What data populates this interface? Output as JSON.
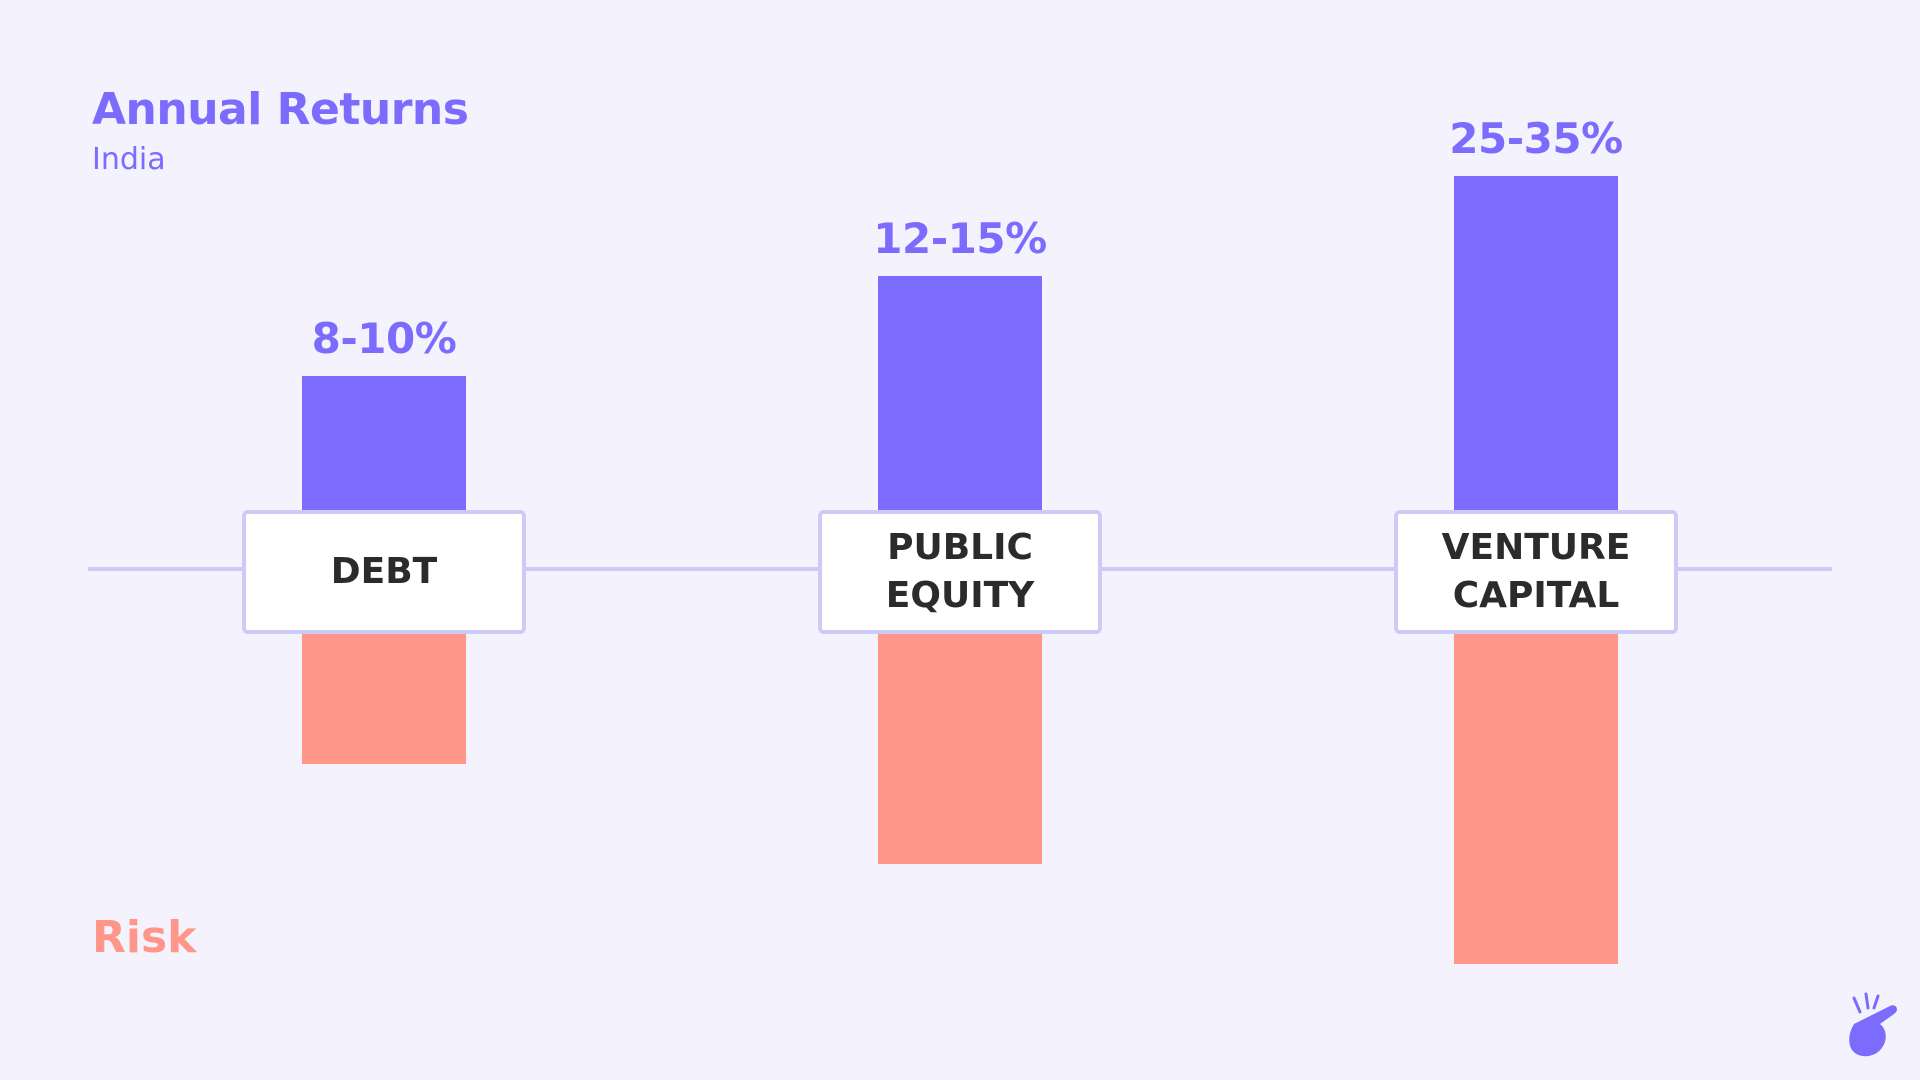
{
  "header": {
    "title": "Annual Returns",
    "subtitle": "India"
  },
  "legend": {
    "risk_label": "Risk"
  },
  "colors": {
    "background": "#f4f3fd",
    "returns": "#7b6cfd",
    "risk": "#ff968a",
    "baseline": "#cfcaf5",
    "category_text": "#2b2b2b"
  },
  "chart_data": {
    "type": "bar",
    "categories": [
      "DEBT",
      "PUBLIC EQUITY",
      "VENTURE CAPITAL"
    ],
    "category_display": [
      "DEBT",
      "PUBLIC\nEQUITY",
      "VENTURE\nCAPITAL"
    ],
    "series": [
      {
        "name": "Annual Returns",
        "direction": "up",
        "labels": [
          "8-10%",
          "12-15%",
          "25-35%"
        ],
        "relative_values": [
          1,
          2,
          3
        ]
      },
      {
        "name": "Risk",
        "direction": "down",
        "relative_values": [
          1,
          2,
          3
        ]
      }
    ],
    "value_labels_shown": true,
    "axes_shown": false,
    "grid": false
  },
  "icons": {
    "logo": "hand-snap-icon"
  }
}
